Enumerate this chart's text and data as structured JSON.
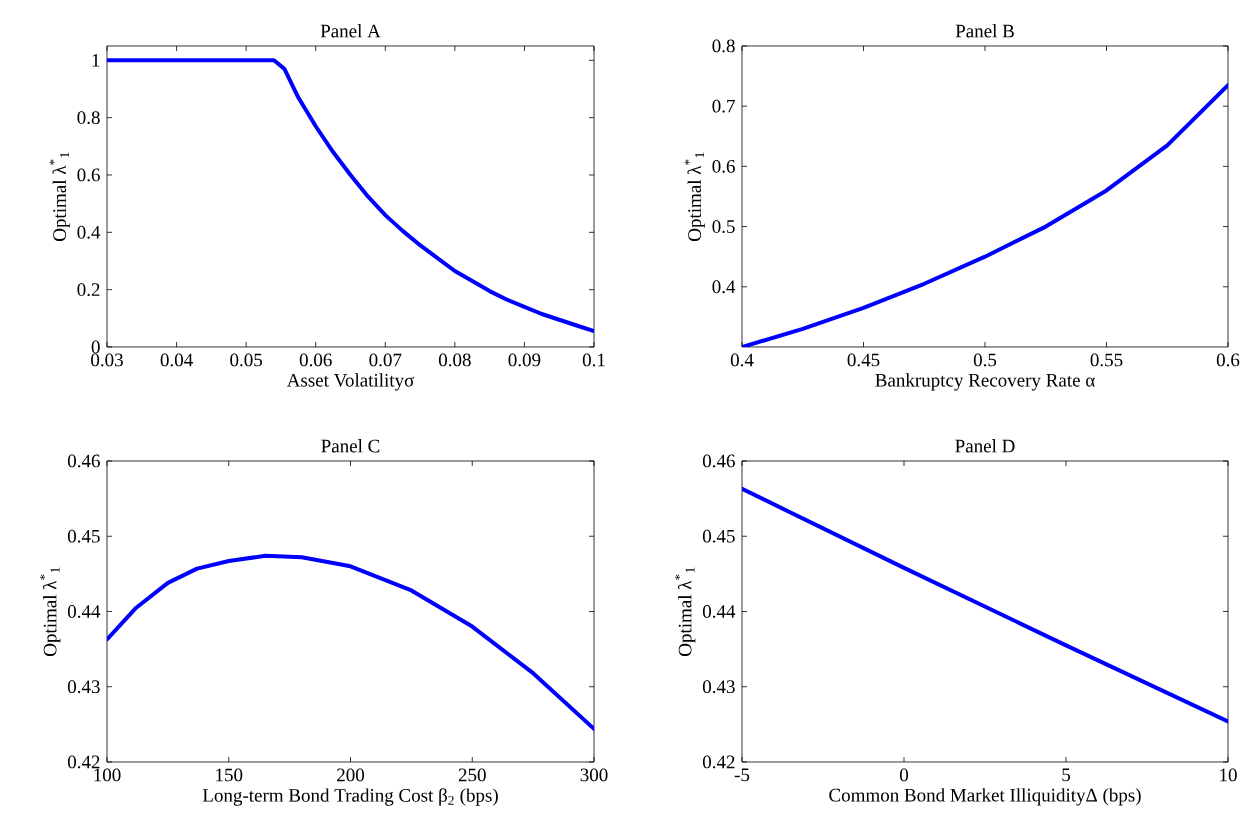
{
  "chart_data": [
    {
      "type": "line",
      "title": "Panel A",
      "xlabel": "Asset Volatilityσ",
      "ylabel": "Optimal λ$^{*}$$_{1}$",
      "x": [
        0.03,
        0.035,
        0.04,
        0.045,
        0.05,
        0.054,
        0.0555,
        0.0575,
        0.06,
        0.0625,
        0.065,
        0.0675,
        0.07,
        0.0725,
        0.075,
        0.0775,
        0.08,
        0.0825,
        0.085,
        0.0875,
        0.09,
        0.0925,
        0.095,
        0.0975,
        0.1
      ],
      "series": [
        {
          "color": "#0000ff",
          "values": [
            1,
            1,
            1,
            1,
            1,
            1,
            0.97,
            0.87,
            0.77,
            0.68,
            0.6,
            0.525,
            0.46,
            0.405,
            0.355,
            0.31,
            0.265,
            0.23,
            0.195,
            0.165,
            0.14,
            0.115,
            0.095,
            0.075,
            0.055
          ]
        }
      ],
      "xlim": [
        0.03,
        0.1
      ],
      "ylim": [
        0,
        1.05
      ],
      "xticks": [
        0.03,
        0.04,
        0.05,
        0.06,
        0.07,
        0.08,
        0.09,
        0.1
      ],
      "yticks": [
        0,
        0.2,
        0.4,
        0.6,
        0.8,
        1
      ]
    },
    {
      "type": "line",
      "title": "Panel B",
      "xlabel": "Bankruptcy Recovery Rate α",
      "ylabel": "Optimal λ$^{*}$$_{1}$",
      "x": [
        0.4,
        0.425,
        0.45,
        0.475,
        0.5,
        0.525,
        0.55,
        0.575,
        0.6
      ],
      "series": [
        {
          "color": "#0000ff",
          "values": [
            0.3,
            0.33,
            0.365,
            0.405,
            0.45,
            0.5,
            0.56,
            0.635,
            0.735
          ]
        }
      ],
      "xlim": [
        0.4,
        0.6
      ],
      "ylim": [
        0.3,
        0.8
      ],
      "xticks": [
        0.4,
        0.45,
        0.5,
        0.55,
        0.6
      ],
      "yticks": [
        0.4,
        0.5,
        0.6,
        0.7,
        0.8
      ]
    },
    {
      "type": "line",
      "title": "Panel C",
      "xlabel": "Long-term Bond Trading Cost β$_{2}$ (bps)",
      "ylabel": "Optimal λ$^{*}$$_{1}$",
      "x": [
        100,
        112,
        125,
        137,
        150,
        165,
        180,
        200,
        225,
        250,
        275,
        300
      ],
      "series": [
        {
          "color": "#0000ff",
          "values": [
            0.4363,
            0.4405,
            0.4438,
            0.4457,
            0.4467,
            0.4474,
            0.4472,
            0.446,
            0.4428,
            0.438,
            0.4318,
            0.4244
          ]
        }
      ],
      "xlim": [
        100,
        300
      ],
      "ylim": [
        0.42,
        0.46
      ],
      "xticks": [
        100,
        150,
        200,
        250,
        300
      ],
      "yticks": [
        0.42,
        0.43,
        0.44,
        0.45,
        0.46
      ]
    },
    {
      "type": "line",
      "title": "Panel D",
      "xlabel": "Common Bond Market IlliquidityΔ (bps)",
      "ylabel": "Optimal λ$^{*}$$_{1}$",
      "x": [
        -5,
        0,
        5,
        10
      ],
      "series": [
        {
          "color": "#0000ff",
          "values": [
            0.4563,
            0.4458,
            0.4355,
            0.4254
          ]
        }
      ],
      "xlim": [
        -5,
        10
      ],
      "ylim": [
        0.42,
        0.46
      ],
      "xticks": [
        -5,
        0,
        5,
        10
      ],
      "yticks": [
        0.42,
        0.43,
        0.44,
        0.45,
        0.46
      ]
    }
  ]
}
